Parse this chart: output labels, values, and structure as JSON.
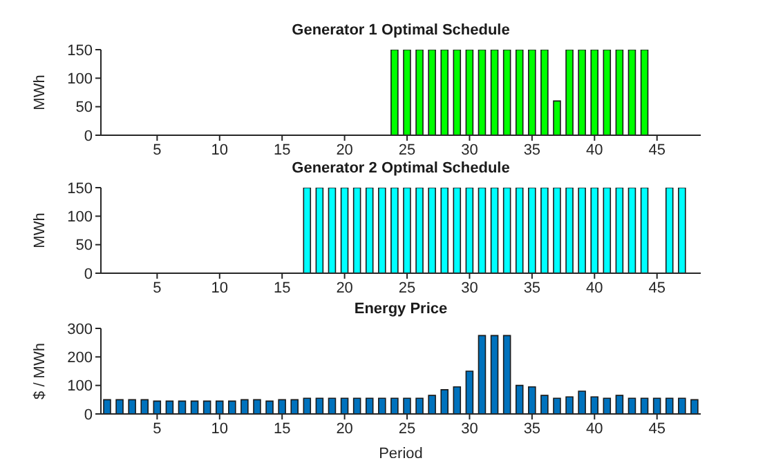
{
  "chart_data": [
    {
      "type": "bar",
      "title": "Generator 1 Optimal Schedule",
      "ylabel": "MWh",
      "color": "#00ff00",
      "x": [
        1,
        2,
        3,
        4,
        5,
        6,
        7,
        8,
        9,
        10,
        11,
        12,
        13,
        14,
        15,
        16,
        17,
        18,
        19,
        20,
        21,
        22,
        23,
        24,
        25,
        26,
        27,
        28,
        29,
        30,
        31,
        32,
        33,
        34,
        35,
        36,
        37,
        38,
        39,
        40,
        41,
        42,
        43,
        44,
        45,
        46,
        47,
        48
      ],
      "values": [
        0,
        0,
        0,
        0,
        0,
        0,
        0,
        0,
        0,
        0,
        0,
        0,
        0,
        0,
        0,
        0,
        0,
        0,
        0,
        0,
        0,
        0,
        0,
        150,
        150,
        150,
        150,
        150,
        150,
        150,
        150,
        150,
        150,
        150,
        150,
        150,
        60,
        150,
        150,
        150,
        150,
        150,
        150,
        150,
        0,
        0,
        0,
        0
      ],
      "xlim": [
        0.5,
        48.5
      ],
      "xticks": [
        5,
        10,
        15,
        20,
        25,
        30,
        35,
        40,
        45
      ],
      "ylim": [
        0,
        150
      ],
      "yticks": [
        0,
        50,
        100,
        150
      ]
    },
    {
      "type": "bar",
      "title": "Generator 2 Optimal Schedule",
      "ylabel": "MWh",
      "color": "#00ffff",
      "x": [
        1,
        2,
        3,
        4,
        5,
        6,
        7,
        8,
        9,
        10,
        11,
        12,
        13,
        14,
        15,
        16,
        17,
        18,
        19,
        20,
        21,
        22,
        23,
        24,
        25,
        26,
        27,
        28,
        29,
        30,
        31,
        32,
        33,
        34,
        35,
        36,
        37,
        38,
        39,
        40,
        41,
        42,
        43,
        44,
        45,
        46,
        47,
        48
      ],
      "values": [
        0,
        0,
        0,
        0,
        0,
        0,
        0,
        0,
        0,
        0,
        0,
        0,
        0,
        0,
        0,
        0,
        150,
        150,
        150,
        150,
        150,
        150,
        150,
        150,
        150,
        150,
        150,
        150,
        150,
        150,
        150,
        150,
        150,
        150,
        150,
        150,
        150,
        150,
        150,
        150,
        150,
        150,
        150,
        150,
        0,
        150,
        150,
        0
      ],
      "xlim": [
        0.5,
        48.5
      ],
      "xticks": [
        5,
        10,
        15,
        20,
        25,
        30,
        35,
        40,
        45
      ],
      "ylim": [
        0,
        150
      ],
      "yticks": [
        0,
        50,
        100,
        150
      ]
    },
    {
      "type": "bar",
      "title": "Energy Price",
      "ylabel": "$ / MWh",
      "xlabel": "Period",
      "color": "#0072bd",
      "x": [
        1,
        2,
        3,
        4,
        5,
        6,
        7,
        8,
        9,
        10,
        11,
        12,
        13,
        14,
        15,
        16,
        17,
        18,
        19,
        20,
        21,
        22,
        23,
        24,
        25,
        26,
        27,
        28,
        29,
        30,
        31,
        32,
        33,
        34,
        35,
        36,
        37,
        38,
        39,
        40,
        41,
        42,
        43,
        44,
        45,
        46,
        47,
        48
      ],
      "values": [
        50,
        50,
        50,
        50,
        45,
        45,
        45,
        45,
        45,
        45,
        45,
        50,
        50,
        45,
        50,
        50,
        55,
        55,
        55,
        55,
        55,
        55,
        55,
        55,
        55,
        55,
        65,
        85,
        95,
        150,
        275,
        275,
        275,
        100,
        95,
        65,
        55,
        60,
        80,
        60,
        55,
        65,
        55,
        55,
        55,
        55,
        55,
        50
      ],
      "xlim": [
        0.5,
        48.5
      ],
      "xticks": [
        5,
        10,
        15,
        20,
        25,
        30,
        35,
        40,
        45
      ],
      "ylim": [
        0,
        300
      ],
      "yticks": [
        0,
        100,
        200,
        300
      ]
    }
  ]
}
